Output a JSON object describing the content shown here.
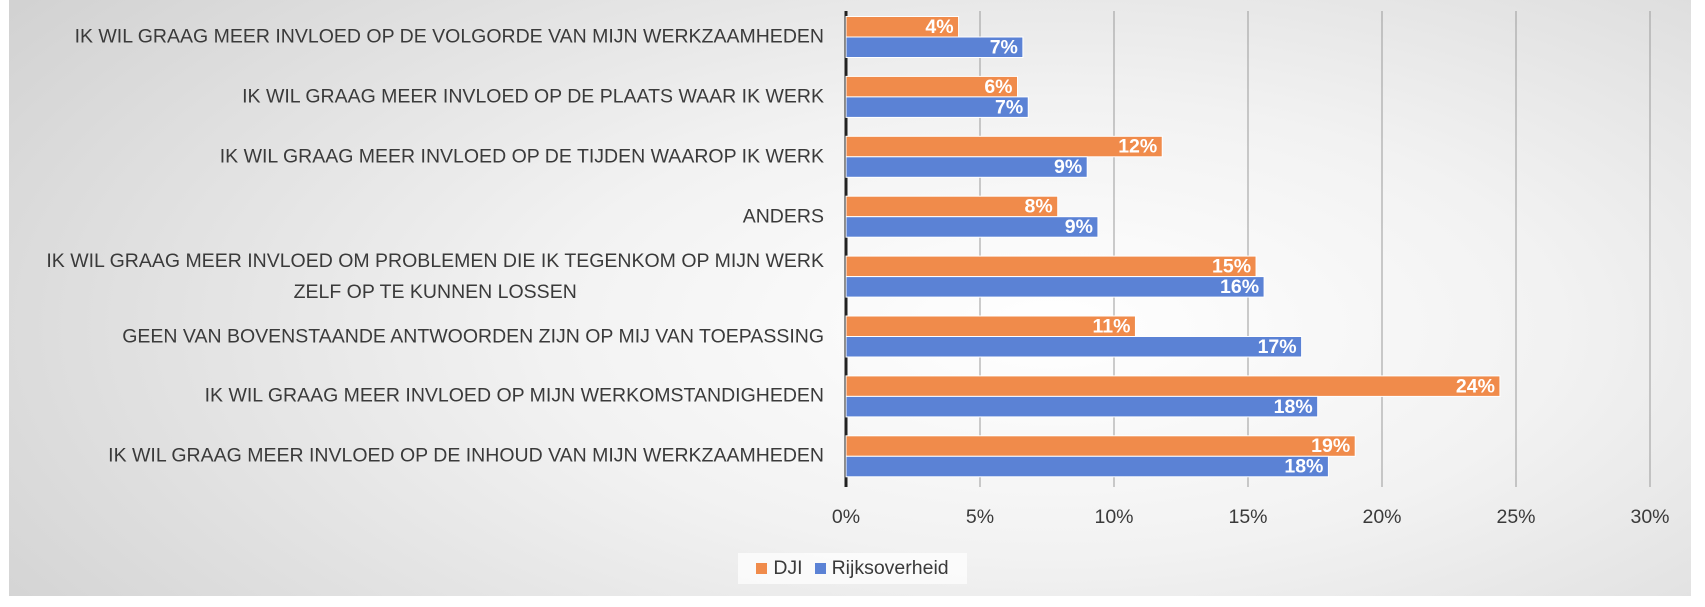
{
  "chart_data": {
    "type": "bar",
    "orientation": "horizontal",
    "categories": [
      "IK WIL GRAAG MEER INVLOED OP DE VOLGORDE VAN MIJN WERKZAAMHEDEN",
      "IK WIL GRAAG MEER INVLOED OP DE PLAATS WAAR IK WERK",
      "IK WIL GRAAG MEER INVLOED OP DE TIJDEN WAAROP IK WERK",
      "ANDERS",
      "IK WIL GRAAG MEER INVLOED OM PROBLEMEN DIE IK TEGENKOM OP MIJN WERK\nZELF OP TE KUNNEN LOSSEN",
      "GEEN VAN BOVENSTAANDE ANTWOORDEN ZIJN OP MIJ VAN TOEPASSING",
      "IK WIL GRAAG MEER INVLOED OP MIJN WERKOMSTANDIGHEDEN",
      "IK WIL GRAAG MEER INVLOED OP DE INHOUD VAN MIJN WERKZAAMHEDEN"
    ],
    "series": [
      {
        "name": "DJI",
        "color": "#f08b4b",
        "values": [
          4.2,
          6.4,
          11.8,
          7.9,
          15.3,
          10.8,
          24.4,
          19.0
        ],
        "value_labels": [
          "4%",
          "6%",
          "12%",
          "8%",
          "15%",
          "11%",
          "24%",
          "19%"
        ]
      },
      {
        "name": "Rijksoverheid",
        "color": "#5b82d5",
        "values": [
          6.6,
          6.8,
          9.0,
          9.4,
          15.6,
          17.0,
          17.6,
          18.0
        ],
        "value_labels": [
          "7%",
          "7%",
          "9%",
          "9%",
          "16%",
          "17%",
          "18%",
          "18%"
        ]
      }
    ],
    "xlim": [
      0,
      30
    ],
    "xticks": [
      {
        "value": 0,
        "label": "0%"
      },
      {
        "value": 5,
        "label": "5%"
      },
      {
        "value": 10,
        "label": "10%"
      },
      {
        "value": 15,
        "label": "15%"
      },
      {
        "value": 20,
        "label": "20%"
      },
      {
        "value": 25,
        "label": "25%"
      },
      {
        "value": 30,
        "label": "30%"
      }
    ],
    "grid": true,
    "legend": "bottom"
  }
}
